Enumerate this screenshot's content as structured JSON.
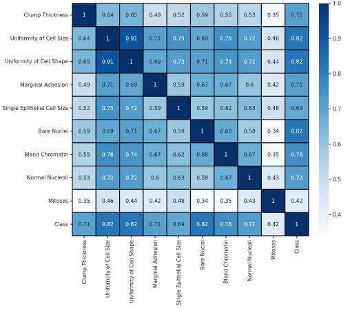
{
  "chart_data": {
    "type": "heatmap",
    "title": "",
    "xlabel": "",
    "ylabel": "",
    "annotated": true,
    "colormap": "Blues",
    "grid_lines": true,
    "grid_color": "#000000",
    "colorbar": {
      "min": 0.34,
      "max": 1.0,
      "position": "right",
      "ticks": [
        "0.4",
        "0.5",
        "0.6",
        "0.7",
        "0.8",
        "0.9",
        "1.0"
      ]
    },
    "row_labels": [
      "Clump Thickness",
      "Uniformity of Cell Size",
      "Uniformity of Cell Shape",
      "Marginal Adhesion",
      "Single Epithelial Cell Size",
      "Bare Nuclei",
      "Bland Chromatin",
      "Normal Nucleoli",
      "Mitoses",
      "Class"
    ],
    "col_labels": [
      "Clump Thickness",
      "Uniformity of Cell Size",
      "Uniformity of Cell Shape",
      "Marginal Adhesion",
      "Single Epithelial Cell Size",
      "Bare Nuclei",
      "Bland Chromatin",
      "Normal Nucleoli",
      "Mitoses",
      "Class"
    ],
    "values": [
      [
        1,
        0.64,
        0.65,
        0.49,
        0.52,
        0.59,
        0.55,
        0.53,
        0.35,
        0.71
      ],
      [
        0.64,
        1,
        0.91,
        0.71,
        0.75,
        0.69,
        0.76,
        0.72,
        0.46,
        0.82
      ],
      [
        0.65,
        0.91,
        1,
        0.69,
        0.72,
        0.71,
        0.74,
        0.72,
        0.44,
        0.82
      ],
      [
        0.49,
        0.71,
        0.69,
        1,
        0.59,
        0.67,
        0.67,
        0.6,
        0.42,
        0.71
      ],
      [
        0.52,
        0.75,
        0.72,
        0.59,
        1,
        0.59,
        0.62,
        0.63,
        0.48,
        0.69
      ],
      [
        0.59,
        0.69,
        0.71,
        0.67,
        0.59,
        1,
        0.68,
        0.58,
        0.34,
        0.82
      ],
      [
        0.55,
        0.76,
        0.74,
        0.67,
        0.62,
        0.68,
        1,
        0.67,
        0.35,
        0.76
      ],
      [
        0.53,
        0.72,
        0.72,
        0.6,
        0.63,
        0.58,
        0.67,
        1,
        0.43,
        0.72
      ],
      [
        0.35,
        0.46,
        0.44,
        0.42,
        0.48,
        0.34,
        0.35,
        0.43,
        1,
        0.42
      ],
      [
        0.71,
        0.82,
        0.82,
        0.71,
        0.69,
        0.82,
        0.76,
        0.72,
        0.42,
        1
      ]
    ]
  }
}
